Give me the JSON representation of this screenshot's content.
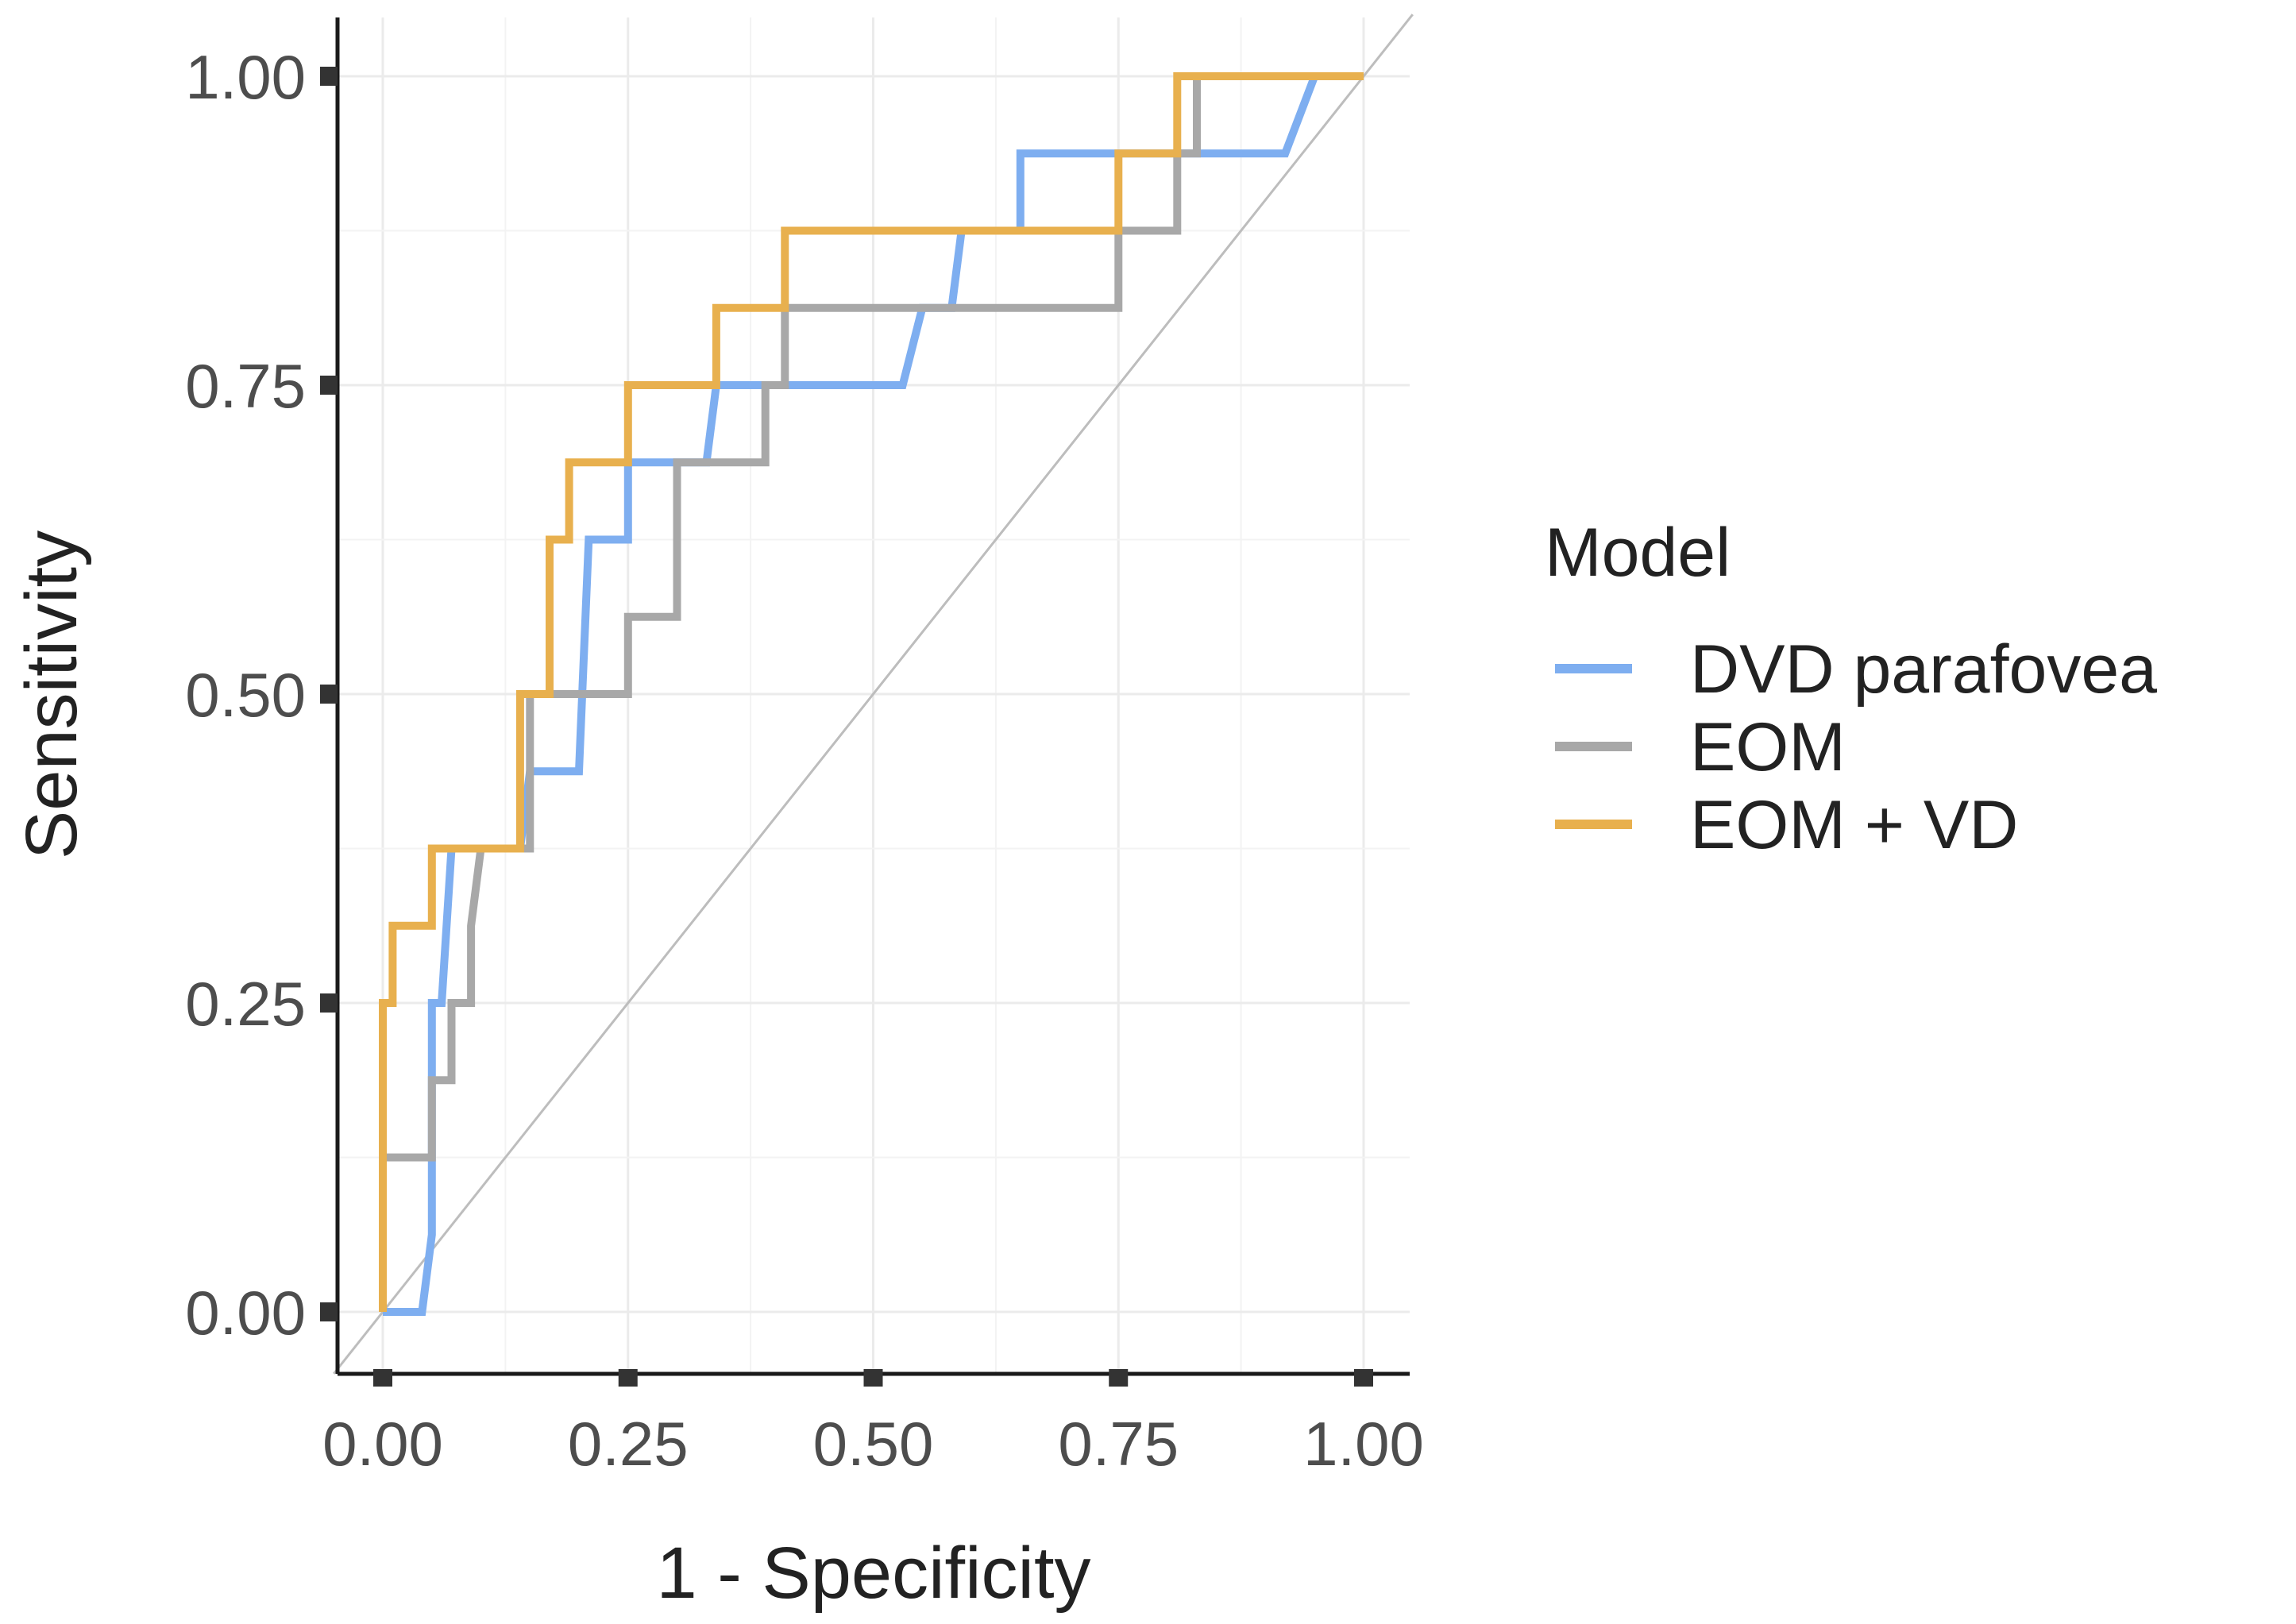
{
  "chart_data": {
    "type": "line",
    "xlabel": "1 - Specificity",
    "ylabel": "Sensitivity",
    "xlim": [
      0,
      1
    ],
    "ylim": [
      0,
      1
    ],
    "x_ticks": [
      "0.00",
      "0.25",
      "0.50",
      "0.75",
      "1.00"
    ],
    "y_ticks": [
      "0.00",
      "0.25",
      "0.50",
      "0.75",
      "1.00"
    ],
    "x_tick_values": [
      0,
      0.25,
      0.5,
      0.75,
      1
    ],
    "y_tick_values": [
      0,
      0.25,
      0.5,
      0.75,
      1
    ],
    "grid": true,
    "legend_title": "Model",
    "legend_position": "right",
    "reference_line": {
      "x": [
        0,
        1
      ],
      "y": [
        0,
        1
      ],
      "color": "#bdbdbd"
    },
    "series": [
      {
        "name": "DVD parafovea",
        "color": "#7eaef0",
        "x": [
          0,
          0.04,
          0.05,
          0.05,
          0.06,
          0.07,
          0.09,
          0.14,
          0.15,
          0.15,
          0.2,
          0.21,
          0.25,
          0.25,
          0.33,
          0.34,
          0.53,
          0.55,
          0.58,
          0.59,
          0.65,
          0.65,
          0.92,
          0.95,
          1.0
        ],
        "y": [
          0,
          0,
          0.0625,
          0.25,
          0.25,
          0.375,
          0.375,
          0.375,
          0.4375,
          0.4375,
          0.4375,
          0.625,
          0.625,
          0.6875,
          0.6875,
          0.75,
          0.75,
          0.8125,
          0.8125,
          0.875,
          0.875,
          0.9375,
          0.9375,
          1.0,
          1.0
        ]
      },
      {
        "name": "EOM",
        "color": "#a8a8a8",
        "x": [
          0,
          0,
          0.05,
          0.05,
          0.07,
          0.07,
          0.09,
          0.09,
          0.1,
          0.15,
          0.15,
          0.25,
          0.25,
          0.3,
          0.3,
          0.39,
          0.39,
          0.41,
          0.41,
          0.75,
          0.75,
          0.81,
          0.81,
          0.83,
          0.83,
          1.0
        ],
        "y": [
          0,
          0.125,
          0.125,
          0.1875,
          0.1875,
          0.25,
          0.25,
          0.3125,
          0.375,
          0.375,
          0.5,
          0.5,
          0.5625,
          0.5625,
          0.6875,
          0.6875,
          0.75,
          0.75,
          0.8125,
          0.8125,
          0.875,
          0.875,
          0.9375,
          0.9375,
          1.0,
          1.0
        ]
      },
      {
        "name": "EOM + VD",
        "color": "#e8b04e",
        "x": [
          0,
          0,
          0.01,
          0.01,
          0.02,
          0.05,
          0.05,
          0.14,
          0.14,
          0.17,
          0.17,
          0.19,
          0.19,
          0.25,
          0.25,
          0.34,
          0.34,
          0.41,
          0.41,
          0.75,
          0.75,
          0.81,
          0.81,
          1.0
        ],
        "y": [
          0,
          0.25,
          0.25,
          0.3125,
          0.3125,
          0.3125,
          0.375,
          0.375,
          0.5,
          0.5,
          0.625,
          0.625,
          0.6875,
          0.6875,
          0.75,
          0.75,
          0.8125,
          0.8125,
          0.875,
          0.875,
          0.9375,
          0.9375,
          1.0,
          1.0
        ]
      }
    ]
  }
}
